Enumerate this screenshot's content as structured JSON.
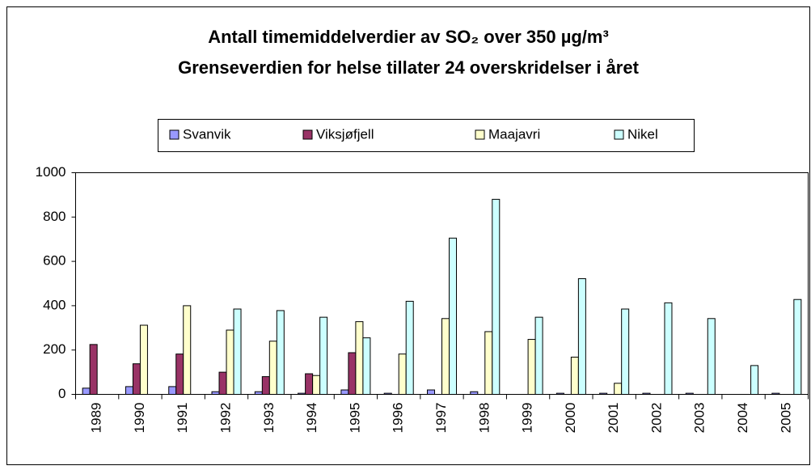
{
  "chart_data": {
    "type": "bar",
    "title": "Antall timemiddelverdier av SO₂ over 350 µg/m³",
    "subtitle": "Grenseverdien for helse tillater 24 overskridelser i året",
    "categories": [
      "1989",
      "1990",
      "1991",
      "1992",
      "1993",
      "1994",
      "1995",
      "1996",
      "1997",
      "1998",
      "1999",
      "2000",
      "2001",
      "2002",
      "2003",
      "2004",
      "2005"
    ],
    "series": [
      {
        "name": "Svanvik",
        "color": "#9999ff",
        "values": [
          28,
          35,
          35,
          12,
          12,
          5,
          20,
          5,
          20,
          12,
          0,
          5,
          5,
          5,
          5,
          0,
          5
        ]
      },
      {
        "name": "Viksjøfjell",
        "color": "#993366",
        "values": [
          225,
          138,
          182,
          100,
          80,
          93,
          188,
          0,
          0,
          0,
          0,
          0,
          0,
          0,
          0,
          0,
          0
        ]
      },
      {
        "name": "Maajavri",
        "color": "#ffffcc",
        "values": [
          0,
          312,
          400,
          290,
          240,
          85,
          328,
          182,
          342,
          283,
          248,
          168,
          50,
          0,
          0,
          0,
          0
        ]
      },
      {
        "name": "Nikel",
        "color": "#ccffff",
        "values": [
          0,
          0,
          0,
          385,
          378,
          348,
          255,
          420,
          705,
          880,
          348,
          522,
          385,
          413,
          342,
          130,
          428
        ]
      }
    ],
    "ylim": [
      0,
      1000
    ],
    "yticks": [
      0,
      200,
      400,
      600,
      800,
      1000
    ],
    "grid": false,
    "legend": "top"
  }
}
